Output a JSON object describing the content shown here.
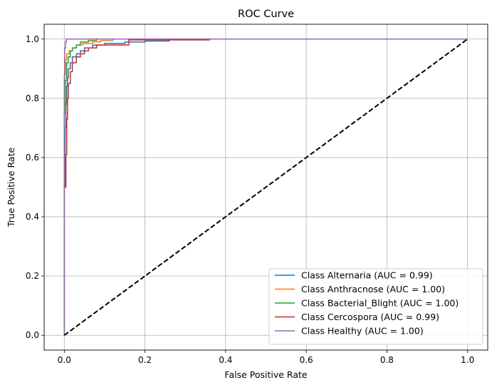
{
  "chart_data": {
    "type": "line",
    "title": "ROC Curve",
    "xlabel": "False Positive Rate",
    "ylabel": "True Positive Rate",
    "xlim": [
      -0.05,
      1.05
    ],
    "ylim": [
      -0.05,
      1.05
    ],
    "xticks": [
      "0.0",
      "0.2",
      "0.4",
      "0.6",
      "0.8",
      "1.0"
    ],
    "yticks": [
      "0.0",
      "0.2",
      "0.4",
      "0.6",
      "0.8",
      "1.0"
    ],
    "grid": true,
    "legend_position": "lower-right",
    "series": [
      {
        "name": "Class Alternaria (AUC = 0.99)",
        "color": "#1f77b4",
        "points": [
          [
            0,
            0
          ],
          [
            0,
            0.5
          ],
          [
            0.002,
            0.5
          ],
          [
            0.002,
            0.7
          ],
          [
            0.004,
            0.7
          ],
          [
            0.004,
            0.78
          ],
          [
            0.006,
            0.78
          ],
          [
            0.006,
            0.84
          ],
          [
            0.008,
            0.84
          ],
          [
            0.008,
            0.87
          ],
          [
            0.01,
            0.87
          ],
          [
            0.01,
            0.9
          ],
          [
            0.015,
            0.9
          ],
          [
            0.015,
            0.92
          ],
          [
            0.02,
            0.92
          ],
          [
            0.02,
            0.94
          ],
          [
            0.03,
            0.94
          ],
          [
            0.03,
            0.95
          ],
          [
            0.04,
            0.95
          ],
          [
            0.04,
            0.96
          ],
          [
            0.05,
            0.96
          ],
          [
            0.05,
            0.97
          ],
          [
            0.07,
            0.97
          ],
          [
            0.07,
            0.98
          ],
          [
            0.1,
            0.98
          ],
          [
            0.1,
            0.985
          ],
          [
            0.15,
            0.985
          ],
          [
            0.15,
            0.99
          ],
          [
            0.2,
            0.99
          ],
          [
            0.2,
            0.993
          ],
          [
            0.26,
            0.993
          ],
          [
            0.26,
            1.0
          ],
          [
            1.0,
            1.0
          ]
        ]
      },
      {
        "name": "Class Anthracnose (AUC = 1.00)",
        "color": "#ff7f0e",
        "points": [
          [
            0,
            0
          ],
          [
            0,
            0.88
          ],
          [
            0.003,
            0.88
          ],
          [
            0.003,
            0.93
          ],
          [
            0.006,
            0.93
          ],
          [
            0.006,
            0.95
          ],
          [
            0.012,
            0.95
          ],
          [
            0.012,
            0.96
          ],
          [
            0.02,
            0.96
          ],
          [
            0.02,
            0.97
          ],
          [
            0.03,
            0.97
          ],
          [
            0.03,
            0.98
          ],
          [
            0.045,
            0.98
          ],
          [
            0.045,
            0.985
          ],
          [
            0.07,
            0.985
          ],
          [
            0.07,
            0.99
          ],
          [
            0.09,
            0.99
          ],
          [
            0.09,
            0.995
          ],
          [
            0.12,
            0.995
          ],
          [
            0.12,
            1.0
          ],
          [
            1.0,
            1.0
          ]
        ]
      },
      {
        "name": "Class Bacterial_Blight (AUC = 1.00)",
        "color": "#2ca02c",
        "points": [
          [
            0,
            0
          ],
          [
            0,
            0.75
          ],
          [
            0.003,
            0.75
          ],
          [
            0.003,
            0.86
          ],
          [
            0.006,
            0.86
          ],
          [
            0.006,
            0.92
          ],
          [
            0.01,
            0.92
          ],
          [
            0.01,
            0.94
          ],
          [
            0.015,
            0.94
          ],
          [
            0.015,
            0.96
          ],
          [
            0.02,
            0.96
          ],
          [
            0.02,
            0.97
          ],
          [
            0.03,
            0.97
          ],
          [
            0.03,
            0.98
          ],
          [
            0.04,
            0.98
          ],
          [
            0.04,
            0.99
          ],
          [
            0.06,
            0.99
          ],
          [
            0.06,
            0.995
          ],
          [
            0.08,
            0.995
          ],
          [
            0.08,
            1.0
          ],
          [
            1.0,
            1.0
          ]
        ]
      },
      {
        "name": "Class Cercospora (AUC = 0.99)",
        "color": "#d62728",
        "points": [
          [
            0,
            0
          ],
          [
            0,
            0.5
          ],
          [
            0.004,
            0.5
          ],
          [
            0.004,
            0.61
          ],
          [
            0.006,
            0.61
          ],
          [
            0.006,
            0.73
          ],
          [
            0.008,
            0.73
          ],
          [
            0.008,
            0.8
          ],
          [
            0.01,
            0.8
          ],
          [
            0.01,
            0.85
          ],
          [
            0.015,
            0.85
          ],
          [
            0.015,
            0.89
          ],
          [
            0.02,
            0.89
          ],
          [
            0.02,
            0.92
          ],
          [
            0.03,
            0.92
          ],
          [
            0.03,
            0.94
          ],
          [
            0.04,
            0.94
          ],
          [
            0.04,
            0.95
          ],
          [
            0.05,
            0.95
          ],
          [
            0.05,
            0.96
          ],
          [
            0.06,
            0.96
          ],
          [
            0.06,
            0.97
          ],
          [
            0.08,
            0.97
          ],
          [
            0.08,
            0.98
          ],
          [
            0.16,
            0.98
          ],
          [
            0.16,
            0.997
          ],
          [
            0.36,
            0.997
          ],
          [
            0.36,
            1.0
          ],
          [
            1.0,
            1.0
          ]
        ]
      },
      {
        "name": "Class Healthy (AUC = 1.00)",
        "color": "#9467bd",
        "points": [
          [
            0,
            0
          ],
          [
            0,
            0.86
          ],
          [
            0.001,
            0.86
          ],
          [
            0.001,
            0.97
          ],
          [
            0.003,
            0.97
          ],
          [
            0.003,
            0.99
          ],
          [
            0.005,
            0.99
          ],
          [
            0.005,
            1.0
          ],
          [
            1.0,
            1.0
          ]
        ]
      }
    ],
    "reference_line": {
      "color": "#000000",
      "points": [
        [
          0,
          0
        ],
        [
          1,
          1
        ]
      ]
    }
  }
}
